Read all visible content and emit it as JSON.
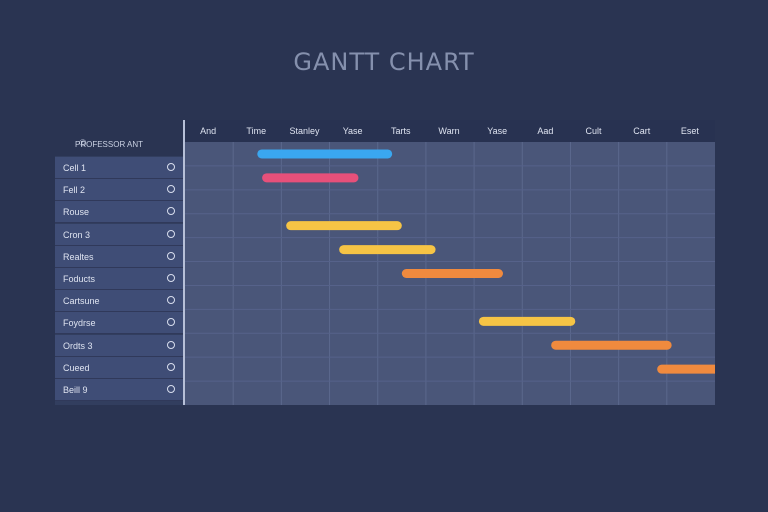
{
  "title": "GANTT CHART",
  "header_label": "PROFESSOR ANT",
  "colors": {
    "background": "#2a3452",
    "grid_bg": "#4a5679",
    "blue": "#3aa7f0",
    "pink": "#e7507a",
    "yellow": "#f6c445",
    "orange": "#f08a3e"
  },
  "chart_data": {
    "type": "gantt",
    "title": "GANTT CHART",
    "columns": [
      "And",
      "Time",
      "Stanley",
      "Yase",
      "Tarts",
      "Warn",
      "Yase",
      "Aad",
      "Cult",
      "Cart",
      "Eset"
    ],
    "rows": [
      {
        "label": "Cell 1",
        "start": 1.5,
        "end": 4.3,
        "color": "#3aa7f0"
      },
      {
        "label": "Fell 2",
        "start": 1.6,
        "end": 3.6,
        "color": "#e7507a"
      },
      {
        "label": "Rouse",
        "start": null,
        "end": null,
        "color": null
      },
      {
        "label": "Cron 3",
        "start": 2.1,
        "end": 4.5,
        "color": "#f6c445"
      },
      {
        "label": "Realtes",
        "start": 3.2,
        "end": 5.2,
        "color": "#f6c445"
      },
      {
        "label": "Foducts",
        "start": 4.5,
        "end": 6.6,
        "color": "#f08a3e"
      },
      {
        "label": "Cartsune",
        "start": null,
        "end": null,
        "color": null
      },
      {
        "label": "Foydrse",
        "start": 6.1,
        "end": 8.1,
        "color": "#f6c445"
      },
      {
        "label": "Ordts 3",
        "start": 7.6,
        "end": 10.1,
        "color": "#f08a3e"
      },
      {
        "label": "Cueed",
        "start": 9.8,
        "end": 11.6,
        "color": "#f08a3e"
      },
      {
        "label": "Beill 9",
        "start": null,
        "end": null,
        "color": null
      }
    ]
  }
}
